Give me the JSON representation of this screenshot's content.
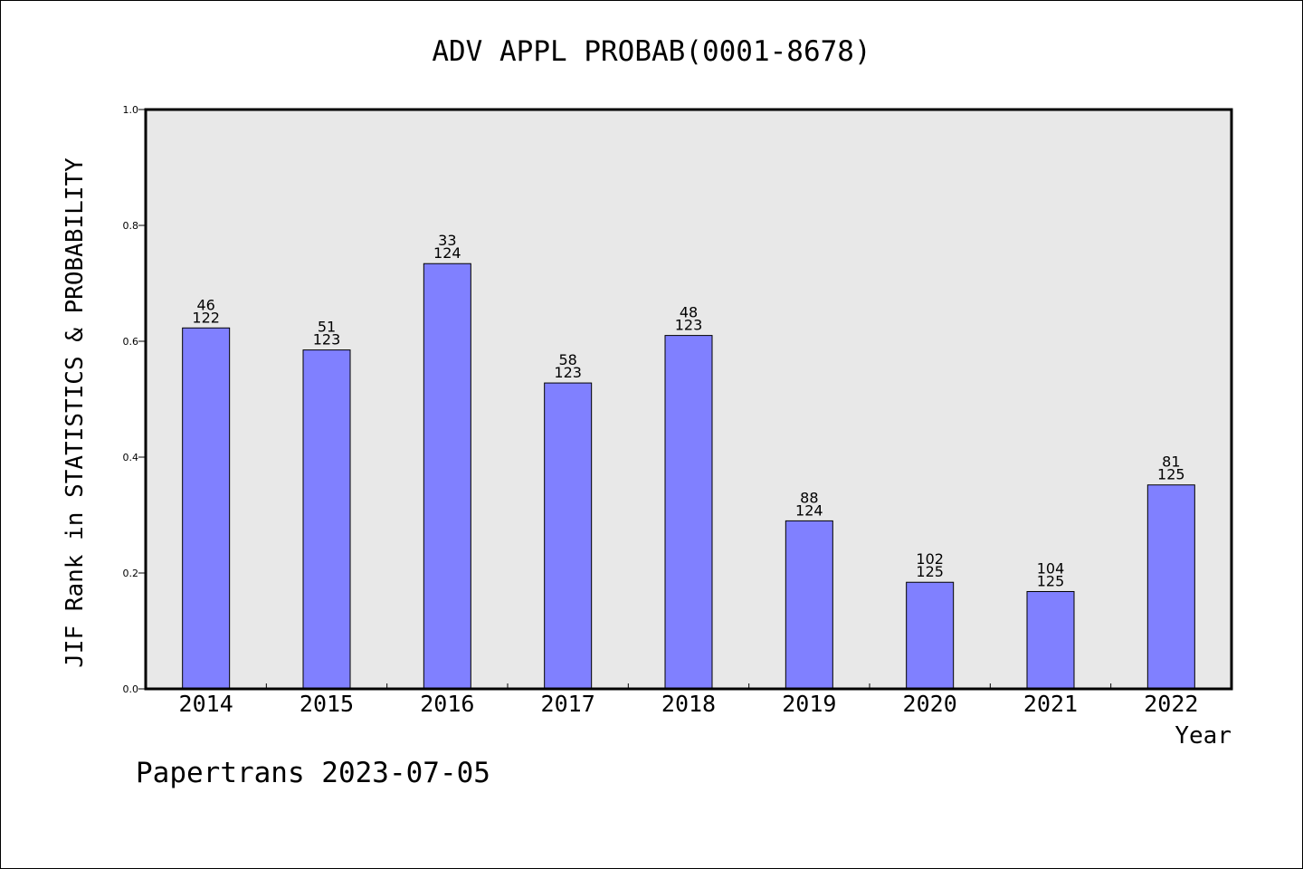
{
  "chart_data": {
    "type": "bar",
    "title": "ADV APPL PROBAB(0001-8678)",
    "xlabel": "Year",
    "ylabel": "JIF Rank in STATISTICS & PROBABILITY",
    "categories": [
      "2014",
      "2015",
      "2016",
      "2017",
      "2018",
      "2019",
      "2020",
      "2021",
      "2022"
    ],
    "values": [
      0.623,
      0.585,
      0.734,
      0.528,
      0.61,
      0.29,
      0.184,
      0.168,
      0.352
    ],
    "rank_labels": [
      "46",
      "51",
      "33",
      "58",
      "48",
      "88",
      "102",
      "104",
      "81"
    ],
    "total_labels": [
      "122",
      "123",
      "124",
      "123",
      "123",
      "124",
      "125",
      "125",
      "125"
    ],
    "ylim": [
      0,
      1.0
    ],
    "yticks": [
      "0.0",
      "0.2",
      "0.4",
      "0.6",
      "0.8",
      "1.0"
    ],
    "grid": false,
    "legend": "none",
    "colors": {
      "bar": "#8080ff",
      "plot_background": "#e8e8e8"
    }
  },
  "footer": {
    "credit": "Papertrans 2023-07-05"
  }
}
